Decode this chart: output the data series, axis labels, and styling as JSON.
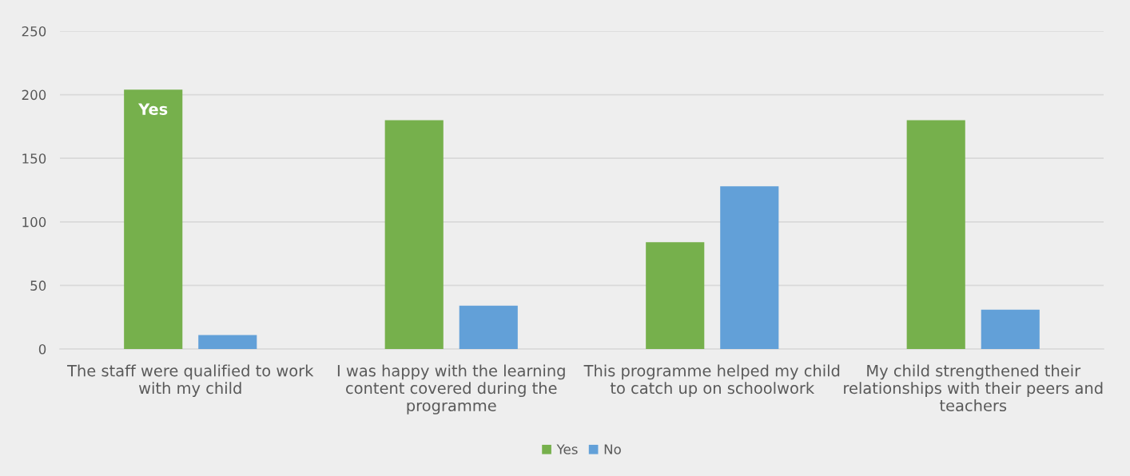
{
  "chart_data": {
    "type": "bar",
    "categories": [
      "The staff were qualified to work\nwith my child",
      "I was happy with the learning\ncontent covered during the\nprogramme",
      "This programme helped my child\nto catch up on schoolwork",
      "My child strengthened their\nrelationships with their peers and\nteachers"
    ],
    "series": [
      {
        "name": "Yes",
        "color": "#76b04c",
        "values": [
          204,
          180,
          84,
          180
        ]
      },
      {
        "name": "No",
        "color": "#62a0d8",
        "values": [
          11,
          34,
          128,
          31
        ]
      }
    ],
    "ylim": [
      0,
      250
    ],
    "yticks": [
      0,
      50,
      100,
      150,
      200,
      250
    ],
    "grid": "y",
    "legend": "bottom",
    "annotations": [
      "Yes"
    ]
  }
}
